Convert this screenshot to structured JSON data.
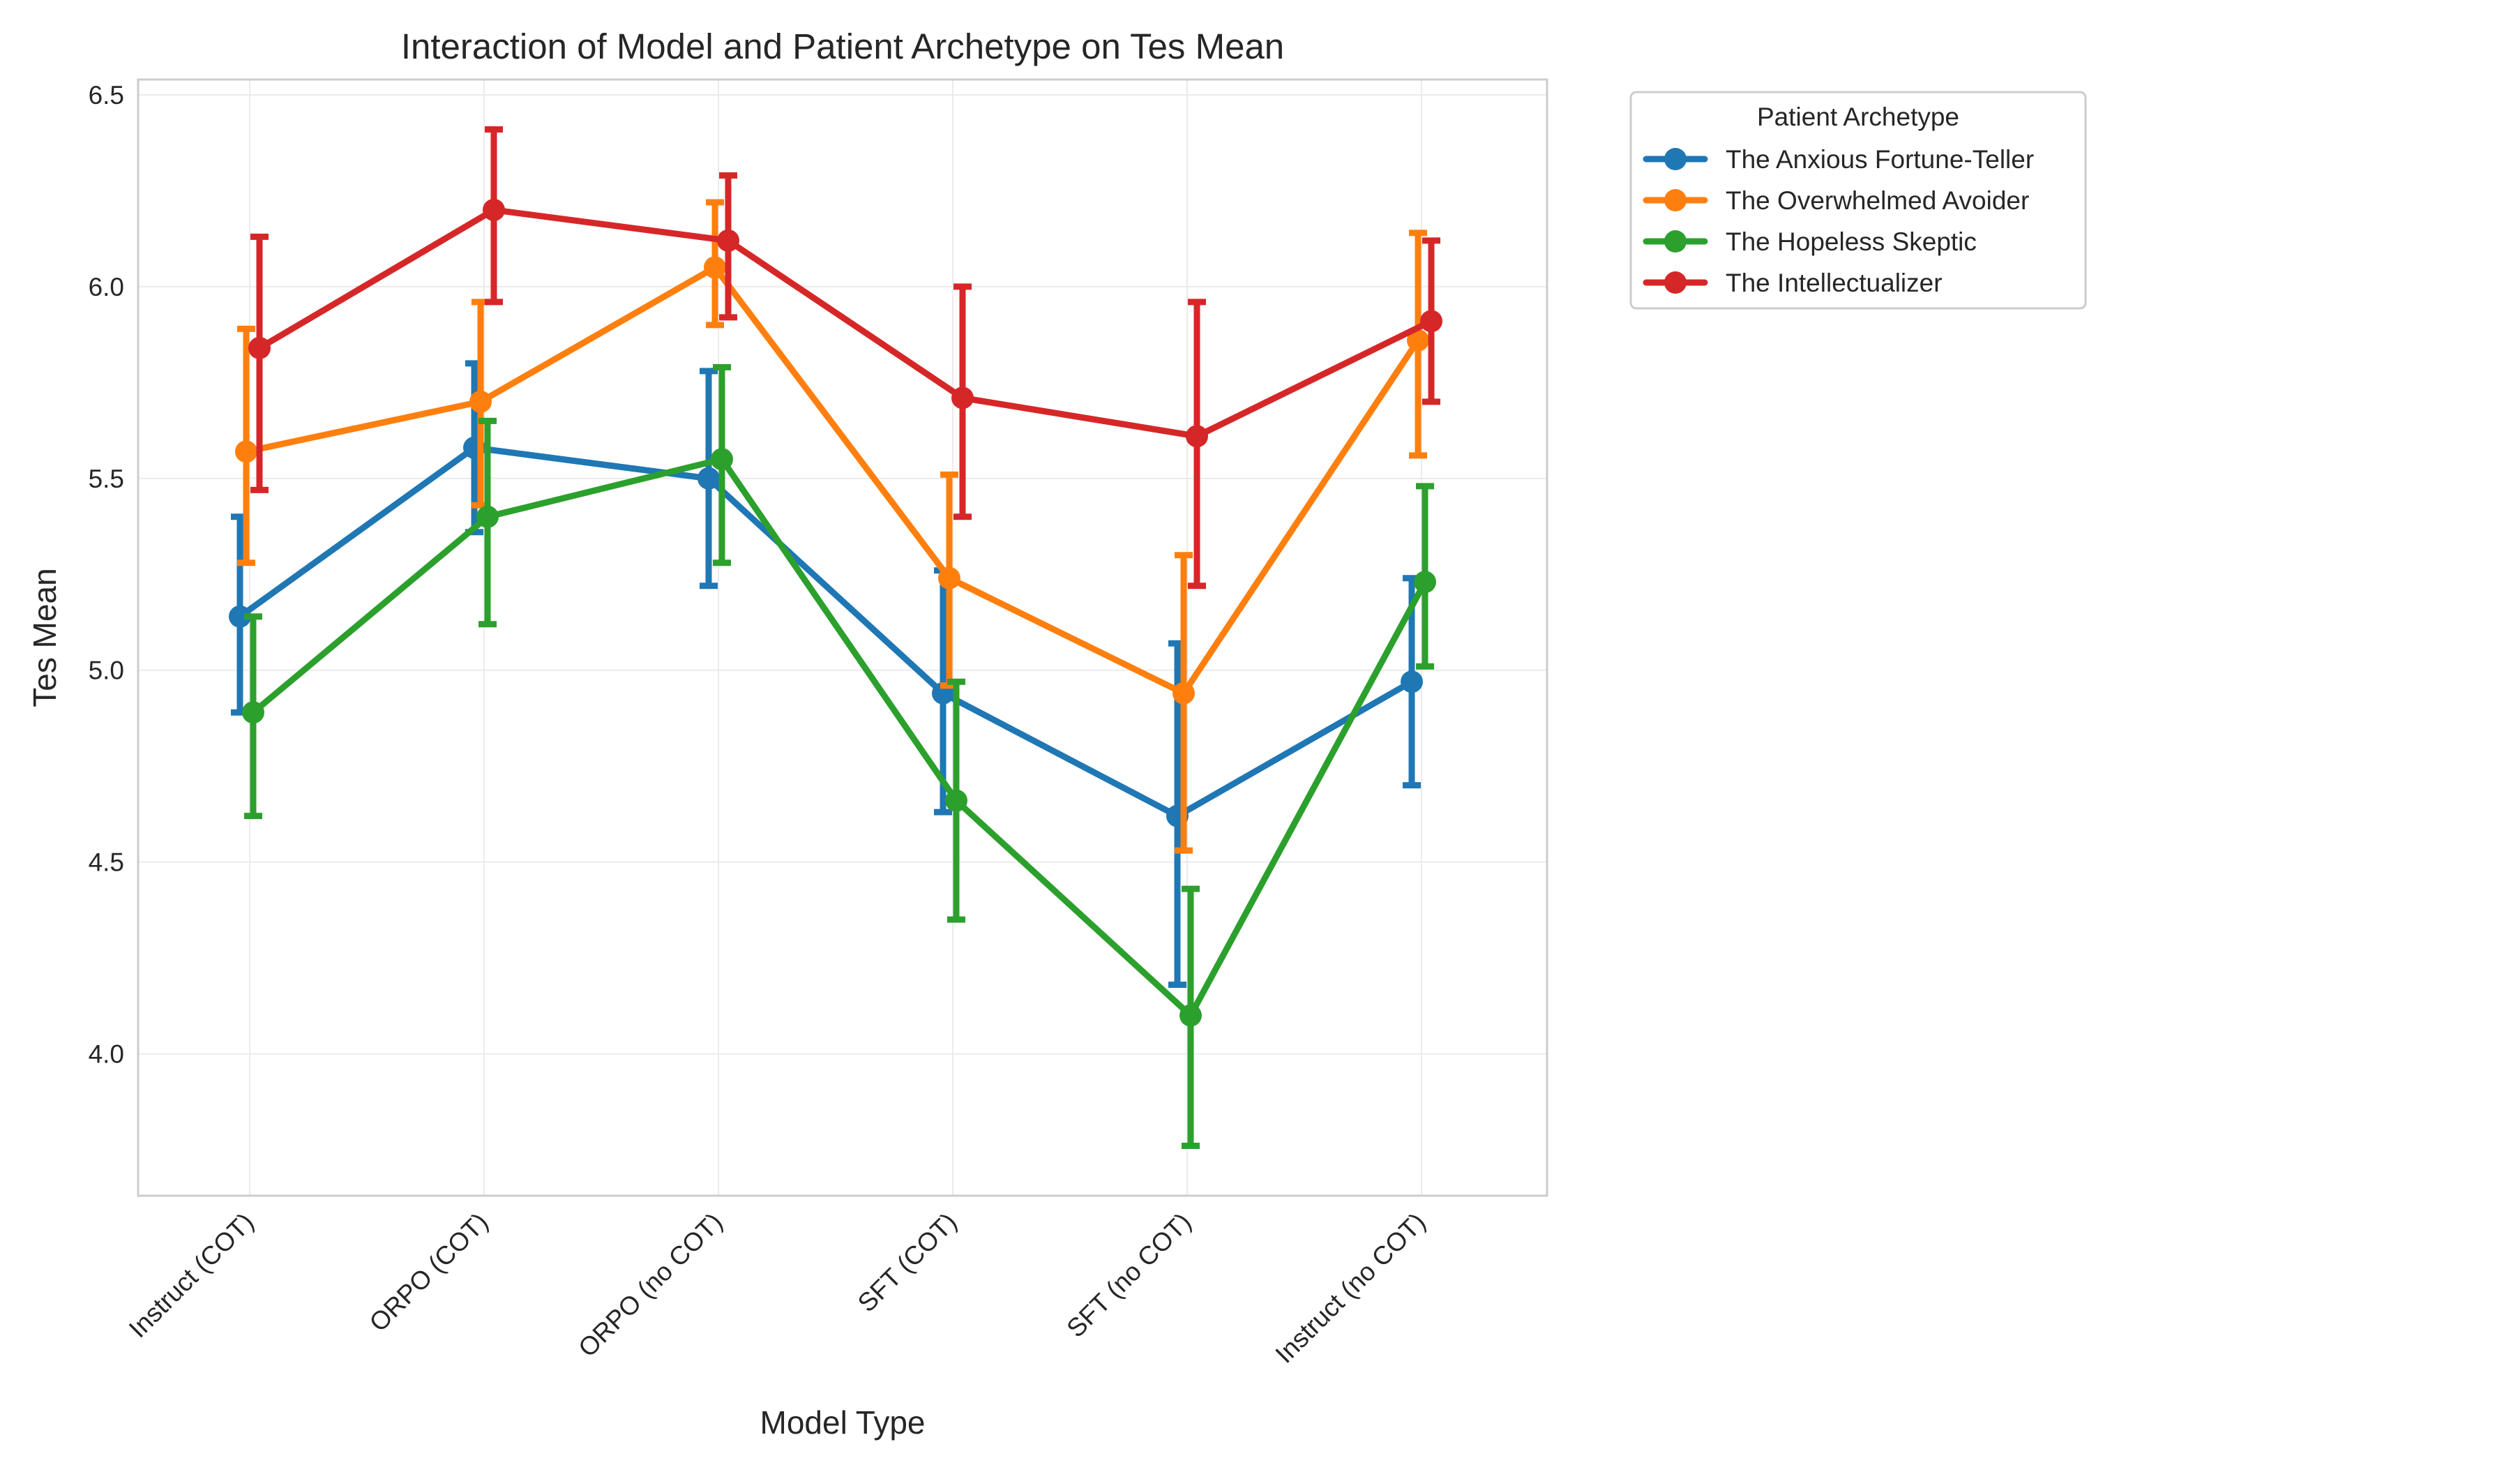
{
  "chart_data": {
    "type": "line",
    "title": "Interaction of Model and Patient Archetype on Tes Mean",
    "xlabel": "Model Type",
    "ylabel": "Tes Mean",
    "categories": [
      "Instruct (COT)",
      "ORPO (COT)",
      "ORPO (no COT)",
      "SFT (COT)",
      "SFT (no COT)",
      "Instruct (no COT)"
    ],
    "ylim": [
      3.63,
      6.54
    ],
    "yticks": [
      4.0,
      4.5,
      5.0,
      5.5,
      6.0,
      6.5
    ],
    "ytick_labels": [
      "4.0",
      "4.5",
      "5.0",
      "5.5",
      "6.0",
      "6.5"
    ],
    "grid": true,
    "legend": {
      "title": "Patient Archetype",
      "placement": "outside-top-right"
    },
    "series": [
      {
        "name": "The Anxious Fortune-Teller",
        "color": "#1f77b4",
        "values": [
          5.14,
          5.58,
          5.5,
          4.94,
          4.62,
          4.97
        ],
        "err_low": [
          4.89,
          5.36,
          5.22,
          4.63,
          4.18,
          4.7
        ],
        "err_high": [
          5.4,
          5.8,
          5.78,
          5.26,
          5.07,
          5.24
        ]
      },
      {
        "name": "The Overwhelmed Avoider",
        "color": "#ff7f0e",
        "values": [
          5.57,
          5.7,
          6.05,
          5.24,
          4.94,
          5.86
        ],
        "err_low": [
          5.28,
          5.43,
          5.9,
          4.96,
          4.53,
          5.56
        ],
        "err_high": [
          5.89,
          5.96,
          6.22,
          5.51,
          5.3,
          6.14
        ]
      },
      {
        "name": "The Hopeless Skeptic",
        "color": "#2ca02c",
        "values": [
          4.89,
          5.4,
          5.55,
          4.66,
          4.1,
          5.23
        ],
        "err_low": [
          4.62,
          5.12,
          5.28,
          4.35,
          3.76,
          5.01
        ],
        "err_high": [
          5.14,
          5.65,
          5.79,
          4.97,
          4.43,
          5.48
        ]
      },
      {
        "name": "The Intellectualizer",
        "color": "#d62728",
        "values": [
          5.84,
          6.2,
          6.12,
          5.71,
          5.61,
          5.91
        ],
        "err_low": [
          5.47,
          5.96,
          5.92,
          5.4,
          5.22,
          5.7
        ],
        "err_high": [
          6.13,
          6.41,
          6.29,
          6.0,
          5.96,
          6.12
        ]
      }
    ]
  }
}
